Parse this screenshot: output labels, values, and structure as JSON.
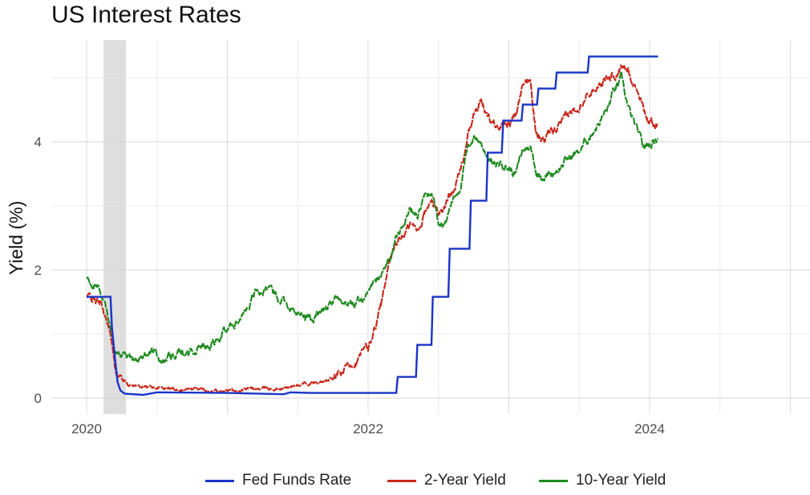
{
  "chart_data": {
    "type": "line",
    "title": "US Interest Rates",
    "xlabel": "",
    "ylabel": "Yield (%)",
    "xlim": [
      2019.8,
      2025.2
    ],
    "ylim": [
      -0.28,
      5.55
    ],
    "x_ticks": [
      2020,
      2022,
      2024
    ],
    "x_tick_labels": [
      "2020",
      "2022",
      "2024"
    ],
    "y_ticks": [
      0,
      2,
      4
    ],
    "y_tick_labels": [
      "0",
      "2",
      "4"
    ],
    "grid": true,
    "legend_position": "bottom",
    "shaded_periods": [
      {
        "start": 2020.12,
        "end": 2020.28
      }
    ],
    "series": [
      {
        "name": "Fed Funds Rate",
        "color": "#1a34c8",
        "line_style": "step",
        "points": [
          [
            2020.0,
            1.58
          ],
          [
            2020.17,
            1.58
          ],
          [
            2020.18,
            1.1
          ],
          [
            2020.2,
            0.65
          ],
          [
            2020.22,
            0.25
          ],
          [
            2020.24,
            0.12
          ],
          [
            2020.27,
            0.07
          ],
          [
            2020.4,
            0.05
          ],
          [
            2020.5,
            0.09
          ],
          [
            2021.0,
            0.08
          ],
          [
            2021.4,
            0.06
          ],
          [
            2021.45,
            0.09
          ],
          [
            2021.6,
            0.08
          ],
          [
            2022.0,
            0.08
          ],
          [
            2022.2,
            0.08
          ],
          [
            2022.21,
            0.33
          ],
          [
            2022.34,
            0.33
          ],
          [
            2022.35,
            0.83
          ],
          [
            2022.45,
            0.83
          ],
          [
            2022.46,
            1.58
          ],
          [
            2022.57,
            1.58
          ],
          [
            2022.58,
            2.33
          ],
          [
            2022.72,
            2.33
          ],
          [
            2022.73,
            3.08
          ],
          [
            2022.84,
            3.08
          ],
          [
            2022.85,
            3.83
          ],
          [
            2022.95,
            3.83
          ],
          [
            2022.96,
            4.33
          ],
          [
            2023.09,
            4.33
          ],
          [
            2023.1,
            4.58
          ],
          [
            2023.2,
            4.58
          ],
          [
            2023.21,
            4.83
          ],
          [
            2023.33,
            4.83
          ],
          [
            2023.34,
            5.08
          ],
          [
            2023.56,
            5.08
          ],
          [
            2023.57,
            5.33
          ],
          [
            2024.06,
            5.33
          ]
        ]
      },
      {
        "name": "2-Year Yield",
        "color": "#c8261a",
        "line_style": "noisy",
        "points": [
          [
            2020.0,
            1.57
          ],
          [
            2020.05,
            1.55
          ],
          [
            2020.1,
            1.45
          ],
          [
            2020.15,
            1.2
          ],
          [
            2020.18,
            0.8
          ],
          [
            2020.2,
            0.5
          ],
          [
            2020.22,
            0.4
          ],
          [
            2020.25,
            0.3
          ],
          [
            2020.3,
            0.22
          ],
          [
            2020.4,
            0.18
          ],
          [
            2020.6,
            0.15
          ],
          [
            2020.8,
            0.14
          ],
          [
            2021.0,
            0.12
          ],
          [
            2021.2,
            0.14
          ],
          [
            2021.4,
            0.15
          ],
          [
            2021.5,
            0.2
          ],
          [
            2021.6,
            0.22
          ],
          [
            2021.7,
            0.25
          ],
          [
            2021.8,
            0.35
          ],
          [
            2021.9,
            0.6
          ],
          [
            2022.0,
            0.75
          ],
          [
            2022.05,
            1.1
          ],
          [
            2022.1,
            1.5
          ],
          [
            2022.15,
            2.0
          ],
          [
            2022.2,
            2.4
          ],
          [
            2022.3,
            2.7
          ],
          [
            2022.35,
            2.6
          ],
          [
            2022.4,
            2.9
          ],
          [
            2022.45,
            3.05
          ],
          [
            2022.5,
            2.9
          ],
          [
            2022.55,
            3.0
          ],
          [
            2022.6,
            3.3
          ],
          [
            2022.65,
            3.5
          ],
          [
            2022.7,
            4.0
          ],
          [
            2022.75,
            4.4
          ],
          [
            2022.8,
            4.6
          ],
          [
            2022.85,
            4.4
          ],
          [
            2022.9,
            4.3
          ],
          [
            2022.95,
            4.3
          ],
          [
            2023.05,
            4.4
          ],
          [
            2023.1,
            4.8
          ],
          [
            2023.15,
            5.0
          ],
          [
            2023.19,
            4.2
          ],
          [
            2023.25,
            4.0
          ],
          [
            2023.3,
            4.1
          ],
          [
            2023.4,
            4.3
          ],
          [
            2023.5,
            4.6
          ],
          [
            2023.55,
            4.8
          ],
          [
            2023.6,
            4.9
          ],
          [
            2023.7,
            5.0
          ],
          [
            2023.75,
            5.05
          ],
          [
            2023.8,
            5.15
          ],
          [
            2023.85,
            5.1
          ],
          [
            2023.9,
            4.9
          ],
          [
            2023.95,
            4.6
          ],
          [
            2024.0,
            4.3
          ],
          [
            2024.06,
            4.3
          ]
        ]
      },
      {
        "name": "10-Year Yield",
        "color": "#1e8a1e",
        "line_style": "noisy",
        "points": [
          [
            2020.0,
            1.85
          ],
          [
            2020.05,
            1.8
          ],
          [
            2020.1,
            1.6
          ],
          [
            2020.13,
            1.5
          ],
          [
            2020.16,
            1.2
          ],
          [
            2020.18,
            1.0
          ],
          [
            2020.2,
            0.7
          ],
          [
            2020.25,
            0.7
          ],
          [
            2020.3,
            0.65
          ],
          [
            2020.4,
            0.65
          ],
          [
            2020.45,
            0.75
          ],
          [
            2020.5,
            0.65
          ],
          [
            2020.6,
            0.62
          ],
          [
            2020.7,
            0.7
          ],
          [
            2020.8,
            0.8
          ],
          [
            2020.9,
            0.9
          ],
          [
            2021.0,
            1.05
          ],
          [
            2021.1,
            1.3
          ],
          [
            2021.15,
            1.5
          ],
          [
            2021.2,
            1.7
          ],
          [
            2021.3,
            1.65
          ],
          [
            2021.4,
            1.55
          ],
          [
            2021.5,
            1.3
          ],
          [
            2021.6,
            1.25
          ],
          [
            2021.7,
            1.4
          ],
          [
            2021.8,
            1.55
          ],
          [
            2021.9,
            1.45
          ],
          [
            2022.0,
            1.65
          ],
          [
            2022.05,
            1.85
          ],
          [
            2022.1,
            1.95
          ],
          [
            2022.15,
            2.15
          ],
          [
            2022.2,
            2.5
          ],
          [
            2022.25,
            2.8
          ],
          [
            2022.3,
            2.95
          ],
          [
            2022.35,
            2.85
          ],
          [
            2022.4,
            3.1
          ],
          [
            2022.45,
            3.2
          ],
          [
            2022.5,
            2.8
          ],
          [
            2022.55,
            2.75
          ],
          [
            2022.6,
            3.1
          ],
          [
            2022.65,
            3.3
          ],
          [
            2022.7,
            3.8
          ],
          [
            2022.75,
            4.1
          ],
          [
            2022.8,
            4.0
          ],
          [
            2022.85,
            3.8
          ],
          [
            2022.9,
            3.6
          ],
          [
            2022.95,
            3.7
          ],
          [
            2023.05,
            3.5
          ],
          [
            2023.1,
            3.85
          ],
          [
            2023.15,
            3.95
          ],
          [
            2023.2,
            3.5
          ],
          [
            2023.3,
            3.5
          ],
          [
            2023.4,
            3.7
          ],
          [
            2023.5,
            3.85
          ],
          [
            2023.55,
            4.0
          ],
          [
            2023.6,
            4.2
          ],
          [
            2023.7,
            4.5
          ],
          [
            2023.75,
            4.8
          ],
          [
            2023.8,
            4.95
          ],
          [
            2023.85,
            4.5
          ],
          [
            2023.9,
            4.2
          ],
          [
            2023.95,
            3.9
          ],
          [
            2024.0,
            3.95
          ],
          [
            2024.06,
            4.1
          ]
        ]
      }
    ]
  }
}
